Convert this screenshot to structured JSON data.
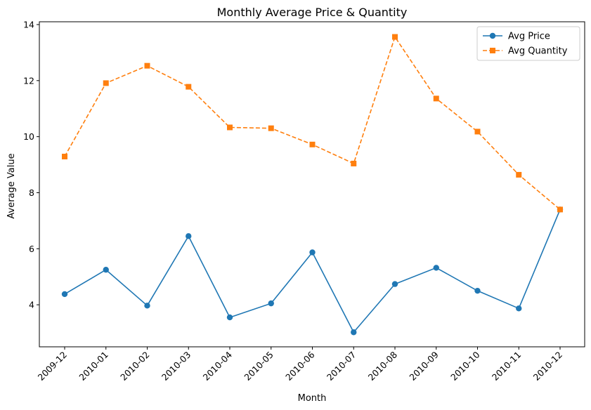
{
  "chart_data": {
    "type": "line",
    "title": "Monthly Average Price & Quantity",
    "xlabel": "Month",
    "ylabel": "Average Value",
    "categories": [
      "2009-12",
      "2010-01",
      "2010-02",
      "2010-03",
      "2010-04",
      "2010-05",
      "2010-06",
      "2010-07",
      "2010-08",
      "2010-09",
      "2010-10",
      "2010-11",
      "2010-12"
    ],
    "yticks": [
      4,
      6,
      8,
      10,
      12,
      14
    ],
    "ylim": [
      2.5,
      14.1
    ],
    "grid": false,
    "legend_position": "top-right",
    "series": [
      {
        "name": "Avg Price",
        "color": "#1f77b4",
        "marker": "circle",
        "line_style": "solid",
        "values": [
          4.38,
          5.25,
          3.97,
          6.45,
          3.55,
          4.05,
          5.87,
          3.02,
          4.74,
          5.32,
          4.5,
          3.87,
          7.4
        ]
      },
      {
        "name": "Avg Quantity",
        "color": "#ff7f0e",
        "marker": "square",
        "line_style": "dashed",
        "values": [
          9.29,
          11.91,
          12.53,
          11.78,
          10.33,
          10.3,
          9.72,
          9.04,
          13.56,
          11.36,
          10.18,
          8.64,
          7.4
        ]
      }
    ]
  }
}
